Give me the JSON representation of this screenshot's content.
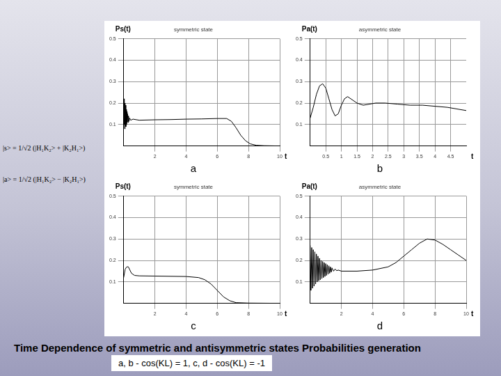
{
  "chart_data": [
    {
      "type": "line",
      "title": "symmetric state",
      "subtitle": "a",
      "x_label": "t",
      "y_label": "Ps(t)",
      "x": [
        0,
        0.02,
        0.04,
        0.06,
        0.08,
        0.1,
        0.12,
        0.14,
        0.16,
        0.18,
        0.2,
        0.22,
        0.25,
        0.28,
        0.31,
        0.34,
        0.38,
        0.45,
        0.6,
        1,
        2,
        3,
        4,
        5,
        6,
        6.6,
        6.9,
        7.2,
        7.5,
        7.8,
        8.1,
        8.5,
        9,
        10
      ],
      "values": [
        0.2,
        0.1,
        0.22,
        0.08,
        0.2,
        0.1,
        0.19,
        0.09,
        0.17,
        0.1,
        0.16,
        0.11,
        0.15,
        0.11,
        0.14,
        0.115,
        0.13,
        0.12,
        0.125,
        0.12,
        0.122,
        0.123,
        0.125,
        0.126,
        0.128,
        0.128,
        0.115,
        0.085,
        0.05,
        0.025,
        0.01,
        0.003,
        0.001,
        0
      ],
      "color": "#000000",
      "xlim": [
        0,
        10
      ],
      "xticks": [
        2,
        4,
        6,
        8,
        10
      ],
      "ylim": [
        0,
        0.5
      ],
      "yticks": [
        0.1,
        0.2,
        0.3,
        0.4,
        0.5
      ],
      "grid": true
    },
    {
      "type": "line",
      "title": "asymmetric state",
      "subtitle": "b",
      "x_label": "t",
      "y_label": "Pa(t)",
      "x": [
        0,
        0.1,
        0.2,
        0.3,
        0.4,
        0.5,
        0.6,
        0.7,
        0.8,
        0.9,
        1,
        1.1,
        1.2,
        1.3,
        1.5,
        1.7,
        1.9,
        2.1,
        2.4,
        2.8,
        3.2,
        3.6,
        4,
        4.4,
        4.8,
        5
      ],
      "values": [
        0.13,
        0.18,
        0.24,
        0.28,
        0.29,
        0.27,
        0.22,
        0.17,
        0.14,
        0.15,
        0.19,
        0.22,
        0.23,
        0.22,
        0.2,
        0.19,
        0.195,
        0.2,
        0.2,
        0.195,
        0.19,
        0.19,
        0.185,
        0.18,
        0.17,
        0.165
      ],
      "color": "#000000",
      "xlim": [
        0,
        5
      ],
      "xticks": [
        0.5,
        1,
        1.5,
        2,
        2.5,
        3,
        3.5,
        4,
        4.5
      ],
      "ylim": [
        0,
        0.5
      ],
      "yticks": [
        0.1,
        0.2,
        0.3,
        0.4,
        0.5
      ],
      "grid": true
    },
    {
      "type": "line",
      "title": "symmetric state",
      "subtitle": "c",
      "x_label": "t",
      "y_label": "Ps(t)",
      "x": [
        0,
        0.1,
        0.2,
        0.3,
        0.4,
        0.5,
        0.7,
        1,
        2,
        3,
        4,
        4.8,
        5.2,
        5.6,
        6,
        6.4,
        6.8,
        7.2,
        8,
        10
      ],
      "values": [
        0.12,
        0.16,
        0.17,
        0.17,
        0.155,
        0.14,
        0.13,
        0.128,
        0.127,
        0.126,
        0.125,
        0.12,
        0.11,
        0.09,
        0.06,
        0.03,
        0.012,
        0.003,
        0.001,
        0
      ],
      "color": "#000000",
      "xlim": [
        0,
        10
      ],
      "xticks": [
        2,
        4,
        6,
        8,
        10
      ],
      "ylim": [
        0,
        0.5
      ],
      "yticks": [
        0.1,
        0.2,
        0.3,
        0.4,
        0.5
      ],
      "grid": true
    },
    {
      "type": "line",
      "title": "asymmetric state",
      "subtitle": "d",
      "x_label": "t",
      "y_label": "Pa(t)",
      "x": [
        0,
        0.05,
        0.1,
        0.15,
        0.2,
        0.25,
        0.3,
        0.35,
        0.4,
        0.45,
        0.5,
        0.55,
        0.6,
        0.65,
        0.7,
        0.75,
        0.8,
        0.85,
        0.9,
        0.95,
        1,
        1.05,
        1.1,
        1.15,
        1.2,
        1.25,
        1.3,
        1.35,
        1.4,
        1.5,
        1.6,
        1.7,
        1.8,
        2,
        3,
        4,
        5,
        5.5,
        6,
        6.5,
        7,
        7.5,
        8,
        8.5,
        9,
        9.5,
        10
      ],
      "values": [
        0.27,
        0.06,
        0.26,
        0.07,
        0.25,
        0.08,
        0.24,
        0.09,
        0.23,
        0.1,
        0.22,
        0.105,
        0.21,
        0.11,
        0.2,
        0.115,
        0.195,
        0.12,
        0.19,
        0.125,
        0.185,
        0.13,
        0.18,
        0.135,
        0.175,
        0.14,
        0.17,
        0.145,
        0.165,
        0.15,
        0.16,
        0.152,
        0.155,
        0.15,
        0.15,
        0.155,
        0.17,
        0.19,
        0.22,
        0.25,
        0.28,
        0.3,
        0.295,
        0.275,
        0.25,
        0.225,
        0.2
      ],
      "color": "#000000",
      "xlim": [
        0,
        10
      ],
      "xticks": [
        2,
        4,
        6,
        8,
        10
      ],
      "ylim": [
        0,
        0.5
      ],
      "yticks": [
        0.1,
        0.2,
        0.3,
        0.4,
        0.5
      ],
      "grid": true
    }
  ],
  "formulas": [
    "|s> = 1/√2 (|H₁K₂> + |K₂H₁>)",
    "|a> = 1/√2 (|H₁K₂> − |K₂H₁>)"
  ],
  "caption": "Time Dependence of  symmetric and antisymmetric states  Probabilities generation",
  "conditions": "a, b - cos(KL) = 1,   c, d - cos(KL) = -1"
}
